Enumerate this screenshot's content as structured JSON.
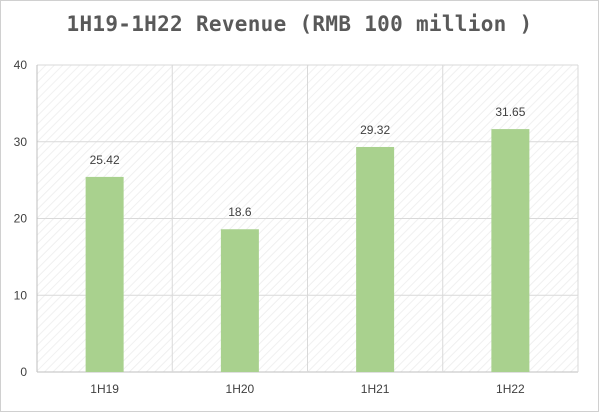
{
  "chart_data": {
    "type": "bar",
    "title": "1H19-1H22 Revenue (RMB 100 million )",
    "categories": [
      "1H19",
      "1H20",
      "1H21",
      "1H22"
    ],
    "values": [
      25.42,
      18.6,
      29.32,
      31.65
    ],
    "data_labels": [
      "25.42",
      "18.6",
      "29.32",
      "31.65"
    ],
    "xlabel": "",
    "ylabel": "",
    "ylim": [
      0,
      40
    ],
    "yticks": [
      0,
      10,
      20,
      30,
      40
    ],
    "grid": true,
    "legend": "none",
    "colors": {
      "bar": "#a9d18e",
      "grid": "#d9d9d9",
      "axis": "#bfbfbf"
    }
  }
}
